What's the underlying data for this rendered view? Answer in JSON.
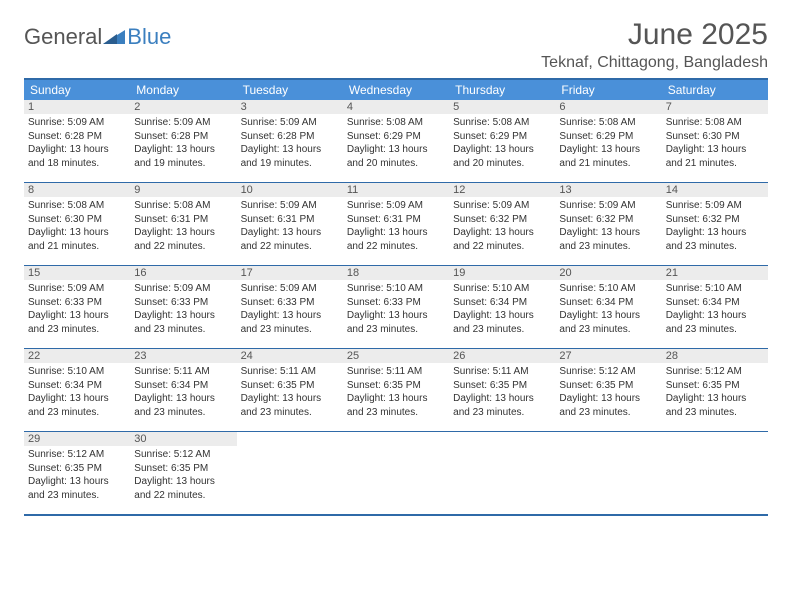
{
  "logo": {
    "part1": "General",
    "part2": "Blue"
  },
  "title": "June 2025",
  "location": "Teknaf, Chittagong, Bangladesh",
  "colors": {
    "header_bg": "#4a90d9",
    "border": "#2f6aa8",
    "gray_row": "#ececec",
    "text": "#333333",
    "muted": "#555555"
  },
  "daysOfWeek": [
    "Sunday",
    "Monday",
    "Tuesday",
    "Wednesday",
    "Thursday",
    "Friday",
    "Saturday"
  ],
  "labels": {
    "sunrise": "Sunrise:",
    "sunset": "Sunset:",
    "daylight": "Daylight:"
  },
  "days": [
    {
      "n": 1,
      "sr": "5:09 AM",
      "ss": "6:28 PM",
      "dl": "13 hours and 18 minutes."
    },
    {
      "n": 2,
      "sr": "5:09 AM",
      "ss": "6:28 PM",
      "dl": "13 hours and 19 minutes."
    },
    {
      "n": 3,
      "sr": "5:09 AM",
      "ss": "6:28 PM",
      "dl": "13 hours and 19 minutes."
    },
    {
      "n": 4,
      "sr": "5:08 AM",
      "ss": "6:29 PM",
      "dl": "13 hours and 20 minutes."
    },
    {
      "n": 5,
      "sr": "5:08 AM",
      "ss": "6:29 PM",
      "dl": "13 hours and 20 minutes."
    },
    {
      "n": 6,
      "sr": "5:08 AM",
      "ss": "6:29 PM",
      "dl": "13 hours and 21 minutes."
    },
    {
      "n": 7,
      "sr": "5:08 AM",
      "ss": "6:30 PM",
      "dl": "13 hours and 21 minutes."
    },
    {
      "n": 8,
      "sr": "5:08 AM",
      "ss": "6:30 PM",
      "dl": "13 hours and 21 minutes."
    },
    {
      "n": 9,
      "sr": "5:08 AM",
      "ss": "6:31 PM",
      "dl": "13 hours and 22 minutes."
    },
    {
      "n": 10,
      "sr": "5:09 AM",
      "ss": "6:31 PM",
      "dl": "13 hours and 22 minutes."
    },
    {
      "n": 11,
      "sr": "5:09 AM",
      "ss": "6:31 PM",
      "dl": "13 hours and 22 minutes."
    },
    {
      "n": 12,
      "sr": "5:09 AM",
      "ss": "6:32 PM",
      "dl": "13 hours and 22 minutes."
    },
    {
      "n": 13,
      "sr": "5:09 AM",
      "ss": "6:32 PM",
      "dl": "13 hours and 23 minutes."
    },
    {
      "n": 14,
      "sr": "5:09 AM",
      "ss": "6:32 PM",
      "dl": "13 hours and 23 minutes."
    },
    {
      "n": 15,
      "sr": "5:09 AM",
      "ss": "6:33 PM",
      "dl": "13 hours and 23 minutes."
    },
    {
      "n": 16,
      "sr": "5:09 AM",
      "ss": "6:33 PM",
      "dl": "13 hours and 23 minutes."
    },
    {
      "n": 17,
      "sr": "5:09 AM",
      "ss": "6:33 PM",
      "dl": "13 hours and 23 minutes."
    },
    {
      "n": 18,
      "sr": "5:10 AM",
      "ss": "6:33 PM",
      "dl": "13 hours and 23 minutes."
    },
    {
      "n": 19,
      "sr": "5:10 AM",
      "ss": "6:34 PM",
      "dl": "13 hours and 23 minutes."
    },
    {
      "n": 20,
      "sr": "5:10 AM",
      "ss": "6:34 PM",
      "dl": "13 hours and 23 minutes."
    },
    {
      "n": 21,
      "sr": "5:10 AM",
      "ss": "6:34 PM",
      "dl": "13 hours and 23 minutes."
    },
    {
      "n": 22,
      "sr": "5:10 AM",
      "ss": "6:34 PM",
      "dl": "13 hours and 23 minutes."
    },
    {
      "n": 23,
      "sr": "5:11 AM",
      "ss": "6:34 PM",
      "dl": "13 hours and 23 minutes."
    },
    {
      "n": 24,
      "sr": "5:11 AM",
      "ss": "6:35 PM",
      "dl": "13 hours and 23 minutes."
    },
    {
      "n": 25,
      "sr": "5:11 AM",
      "ss": "6:35 PM",
      "dl": "13 hours and 23 minutes."
    },
    {
      "n": 26,
      "sr": "5:11 AM",
      "ss": "6:35 PM",
      "dl": "13 hours and 23 minutes."
    },
    {
      "n": 27,
      "sr": "5:12 AM",
      "ss": "6:35 PM",
      "dl": "13 hours and 23 minutes."
    },
    {
      "n": 28,
      "sr": "5:12 AM",
      "ss": "6:35 PM",
      "dl": "13 hours and 23 minutes."
    },
    {
      "n": 29,
      "sr": "5:12 AM",
      "ss": "6:35 PM",
      "dl": "13 hours and 23 minutes."
    },
    {
      "n": 30,
      "sr": "5:12 AM",
      "ss": "6:35 PM",
      "dl": "13 hours and 22 minutes."
    }
  ]
}
